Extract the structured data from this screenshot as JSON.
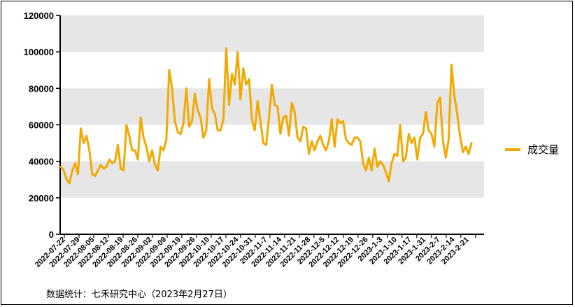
{
  "chart_data": {
    "type": "line",
    "xlabel": "",
    "ylabel": "",
    "ylim": [
      0,
      120000
    ],
    "yticks": [
      "0",
      "20000",
      "40000",
      "60000",
      "80000",
      "100000",
      "120000"
    ],
    "ytick_values": [
      0,
      20000,
      40000,
      60000,
      80000,
      100000,
      120000
    ],
    "xtick_labels": [
      "2022-07-22",
      "2022-07-29",
      "2022-08-05",
      "2022-08-12",
      "2022-08-19",
      "2022-08-26",
      "2022-09-02",
      "2022-09-09",
      "2022-09-19",
      "2022-09-26",
      "2022-10-10",
      "2022-10-17",
      "2022-10-24",
      "2022-10-31",
      "2022-11-7",
      "2022-11-14",
      "2022-11-21",
      "2022-11-28",
      "2022-12-5",
      "2022-12-12",
      "2022-12-19",
      "2022-12-26",
      "2023-1-3",
      "2023-1-10",
      "2023-1-17",
      "2023-1-31",
      "2023-2-7",
      "2023-2-14",
      "2023-2-21"
    ],
    "legend_position": "right",
    "grid": "horizontal bands",
    "series": [
      {
        "name": "成交量",
        "color": "#F2A900",
        "values": [
          37000,
          35000,
          30000,
          28000,
          35000,
          39000,
          33000,
          58000,
          50000,
          54000,
          46000,
          33000,
          32000,
          35000,
          38000,
          36000,
          37000,
          41000,
          39000,
          40000,
          49000,
          36000,
          35000,
          60000,
          54000,
          46000,
          46000,
          41000,
          64000,
          53000,
          48000,
          40000,
          46000,
          38000,
          35000,
          48000,
          46000,
          52000,
          90000,
          80000,
          62000,
          56000,
          55000,
          61000,
          80000,
          59000,
          62000,
          77000,
          68000,
          64000,
          53000,
          57000,
          85000,
          69000,
          66000,
          57000,
          57000,
          63000,
          102000,
          71000,
          88000,
          82000,
          100000,
          74000,
          91000,
          82000,
          85000,
          63000,
          57000,
          73000,
          62000,
          50000,
          49000,
          64000,
          82000,
          71000,
          70000,
          55000,
          64000,
          65000,
          54000,
          72000,
          67000,
          53000,
          51000,
          59000,
          58000,
          44000,
          51000,
          46000,
          51000,
          54000,
          49000,
          46000,
          51000,
          63000,
          48000,
          63000,
          61000,
          62000,
          52000,
          50000,
          49000,
          53000,
          53000,
          51000,
          39000,
          35000,
          42000,
          35000,
          47000,
          37000,
          40000,
          38000,
          34000,
          29000,
          39000,
          44000,
          43000,
          60000,
          40000,
          42000,
          55000,
          50000,
          53000,
          41000,
          53000,
          55000,
          67000,
          57000,
          55000,
          48000,
          72000,
          75000,
          51000,
          42000,
          52000,
          93000,
          76000,
          66000,
          54000,
          45000,
          48000,
          44000,
          50000
        ]
      }
    ]
  },
  "legend": {
    "label": "成交量",
    "color": "#F2A900"
  },
  "source_note": "数据统计：七禾研究中心（2023年2月27日）",
  "colors": {
    "band": "#E6E6E6",
    "axis": "#000000",
    "line": "#F2A900"
  }
}
